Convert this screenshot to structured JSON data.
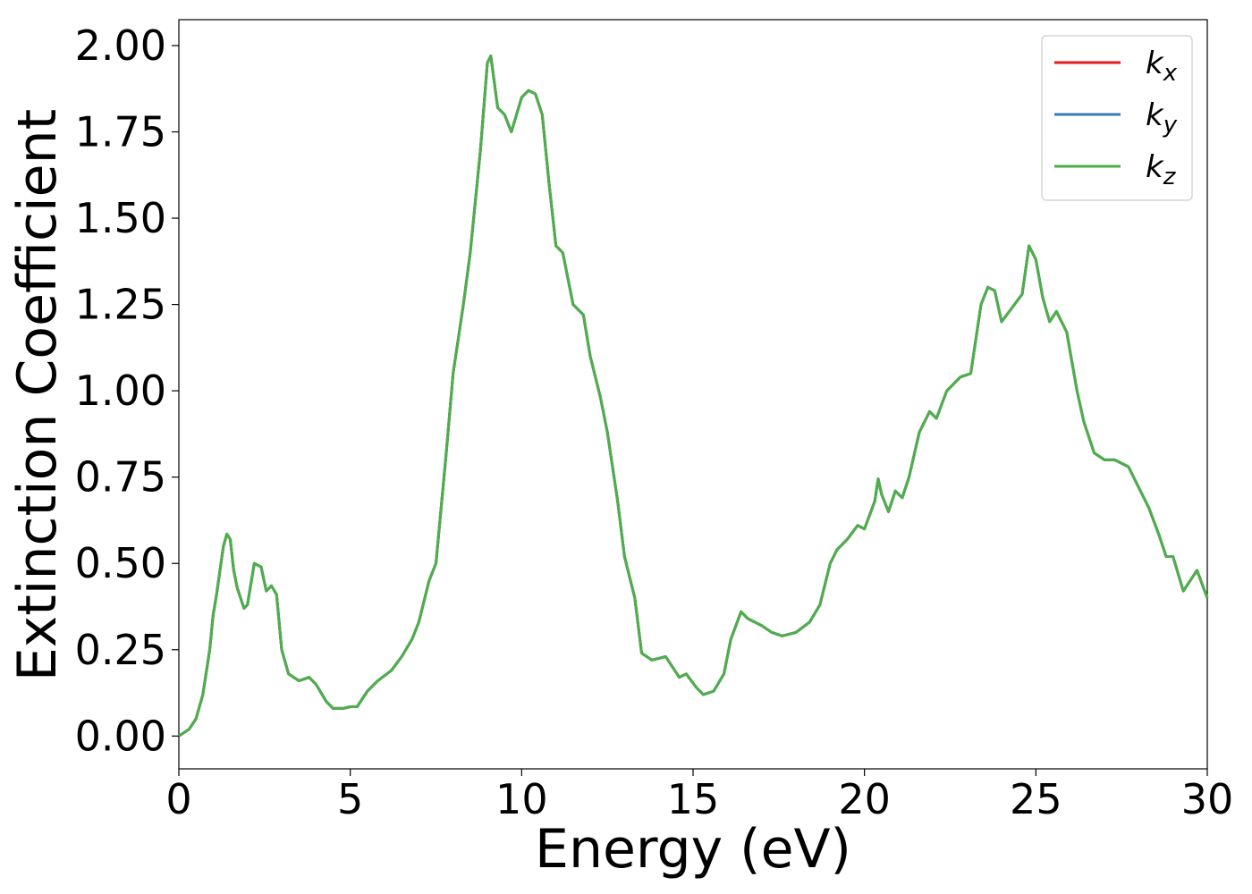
{
  "chart_data": {
    "type": "line",
    "title": "",
    "xlabel": "Energy (eV)",
    "ylabel": "Extinction Coefficient",
    "xlim": [
      0,
      30
    ],
    "ylim": [
      -0.095,
      2.075
    ],
    "x_ticks": [
      0,
      5,
      10,
      15,
      20,
      25,
      30
    ],
    "x_tick_labels": [
      "0",
      "5",
      "10",
      "15",
      "20",
      "25",
      "30"
    ],
    "y_ticks": [
      0,
      0.25,
      0.5,
      0.75,
      1.0,
      1.25,
      1.5,
      1.75,
      2.0
    ],
    "y_tick_labels": [
      "0.00",
      "0.25",
      "0.50",
      "0.75",
      "1.00",
      "1.25",
      "1.50",
      "1.75",
      "2.00"
    ],
    "grid": false,
    "legend_position": "top-right",
    "x": [
      0,
      0.3,
      0.5,
      0.7,
      0.9,
      1.0,
      1.1,
      1.3,
      1.4,
      1.5,
      1.6,
      1.7,
      1.9,
      2.0,
      2.2,
      2.4,
      2.55,
      2.7,
      2.85,
      3.0,
      3.2,
      3.5,
      3.8,
      4.0,
      4.3,
      4.5,
      4.8,
      5.0,
      5.2,
      5.5,
      5.8,
      6.2,
      6.5,
      6.8,
      7.0,
      7.3,
      7.5,
      7.8,
      8.0,
      8.3,
      8.5,
      8.8,
      9.0,
      9.1,
      9.3,
      9.5,
      9.7,
      10.0,
      10.2,
      10.4,
      10.6,
      10.8,
      11.0,
      11.2,
      11.5,
      11.8,
      12.0,
      12.3,
      12.5,
      12.8,
      13.0,
      13.3,
      13.5,
      13.8,
      14.2,
      14.6,
      14.8,
      15.1,
      15.3,
      15.6,
      15.9,
      16.1,
      16.4,
      16.6,
      16.8,
      17.0,
      17.3,
      17.6,
      18.0,
      18.4,
      18.7,
      19.0,
      19.2,
      19.5,
      19.8,
      20.0,
      20.3,
      20.4,
      20.5,
      20.7,
      20.9,
      21.1,
      21.3,
      21.6,
      21.9,
      22.1,
      22.4,
      22.6,
      22.8,
      23.1,
      23.4,
      23.6,
      23.8,
      24.0,
      24.3,
      24.6,
      24.8,
      25.0,
      25.2,
      25.4,
      25.6,
      25.9,
      26.2,
      26.4,
      26.7,
      27.0,
      27.3,
      27.7,
      28.0,
      28.3,
      28.6,
      28.8,
      29.0,
      29.3,
      29.5,
      29.7,
      30.0
    ],
    "series": [
      {
        "name": "k_x",
        "label_main": "k",
        "label_sub": "x",
        "color": "#e41a1c",
        "y": [
          0.0,
          0.02,
          0.05,
          0.12,
          0.25,
          0.35,
          0.41,
          0.55,
          0.585,
          0.57,
          0.48,
          0.43,
          0.37,
          0.38,
          0.5,
          0.49,
          0.42,
          0.435,
          0.41,
          0.25,
          0.18,
          0.16,
          0.17,
          0.15,
          0.1,
          0.08,
          0.08,
          0.085,
          0.085,
          0.13,
          0.16,
          0.19,
          0.23,
          0.28,
          0.33,
          0.45,
          0.5,
          0.82,
          1.05,
          1.25,
          1.4,
          1.7,
          1.95,
          1.97,
          1.82,
          1.8,
          1.75,
          1.85,
          1.87,
          1.86,
          1.8,
          1.6,
          1.42,
          1.4,
          1.25,
          1.22,
          1.1,
          0.98,
          0.88,
          0.68,
          0.52,
          0.4,
          0.24,
          0.22,
          0.23,
          0.17,
          0.18,
          0.14,
          0.12,
          0.13,
          0.18,
          0.28,
          0.36,
          0.34,
          0.33,
          0.32,
          0.3,
          0.29,
          0.3,
          0.33,
          0.38,
          0.5,
          0.54,
          0.57,
          0.61,
          0.6,
          0.68,
          0.745,
          0.7,
          0.65,
          0.71,
          0.69,
          0.75,
          0.88,
          0.94,
          0.92,
          1.0,
          1.02,
          1.04,
          1.05,
          1.25,
          1.3,
          1.29,
          1.2,
          1.24,
          1.28,
          1.42,
          1.38,
          1.27,
          1.2,
          1.23,
          1.17,
          1.0,
          0.91,
          0.82,
          0.8,
          0.8,
          0.78,
          0.72,
          0.66,
          0.58,
          0.52,
          0.52,
          0.42,
          0.45,
          0.48,
          0.4
        ]
      },
      {
        "name": "k_y",
        "label_main": "k",
        "label_sub": "y",
        "color": "#377eb8",
        "y": [
          0.0,
          0.02,
          0.05,
          0.12,
          0.25,
          0.35,
          0.41,
          0.55,
          0.585,
          0.57,
          0.48,
          0.43,
          0.37,
          0.38,
          0.5,
          0.49,
          0.42,
          0.435,
          0.41,
          0.25,
          0.18,
          0.16,
          0.17,
          0.15,
          0.1,
          0.08,
          0.08,
          0.085,
          0.085,
          0.13,
          0.16,
          0.19,
          0.23,
          0.28,
          0.33,
          0.45,
          0.5,
          0.82,
          1.05,
          1.25,
          1.4,
          1.7,
          1.95,
          1.97,
          1.82,
          1.8,
          1.75,
          1.85,
          1.87,
          1.86,
          1.8,
          1.6,
          1.42,
          1.4,
          1.25,
          1.22,
          1.1,
          0.98,
          0.88,
          0.68,
          0.52,
          0.4,
          0.24,
          0.22,
          0.23,
          0.17,
          0.18,
          0.14,
          0.12,
          0.13,
          0.18,
          0.28,
          0.36,
          0.34,
          0.33,
          0.32,
          0.3,
          0.29,
          0.3,
          0.33,
          0.38,
          0.5,
          0.54,
          0.57,
          0.61,
          0.6,
          0.68,
          0.745,
          0.7,
          0.65,
          0.71,
          0.69,
          0.75,
          0.88,
          0.94,
          0.92,
          1.0,
          1.02,
          1.04,
          1.05,
          1.25,
          1.3,
          1.29,
          1.2,
          1.24,
          1.28,
          1.42,
          1.38,
          1.27,
          1.2,
          1.23,
          1.17,
          1.0,
          0.91,
          0.82,
          0.8,
          0.8,
          0.78,
          0.72,
          0.66,
          0.58,
          0.52,
          0.52,
          0.42,
          0.45,
          0.48,
          0.4
        ]
      },
      {
        "name": "k_z",
        "label_main": "k",
        "label_sub": "z",
        "color": "#4daf4a",
        "y": [
          0.0,
          0.02,
          0.05,
          0.12,
          0.25,
          0.35,
          0.41,
          0.55,
          0.585,
          0.57,
          0.48,
          0.43,
          0.37,
          0.38,
          0.5,
          0.49,
          0.42,
          0.435,
          0.41,
          0.25,
          0.18,
          0.16,
          0.17,
          0.15,
          0.1,
          0.08,
          0.08,
          0.085,
          0.085,
          0.13,
          0.16,
          0.19,
          0.23,
          0.28,
          0.33,
          0.45,
          0.5,
          0.82,
          1.05,
          1.25,
          1.4,
          1.7,
          1.95,
          1.97,
          1.82,
          1.8,
          1.75,
          1.85,
          1.87,
          1.86,
          1.8,
          1.6,
          1.42,
          1.4,
          1.25,
          1.22,
          1.1,
          0.98,
          0.88,
          0.68,
          0.52,
          0.4,
          0.24,
          0.22,
          0.23,
          0.17,
          0.18,
          0.14,
          0.12,
          0.13,
          0.18,
          0.28,
          0.36,
          0.34,
          0.33,
          0.32,
          0.3,
          0.29,
          0.3,
          0.33,
          0.38,
          0.5,
          0.54,
          0.57,
          0.61,
          0.6,
          0.68,
          0.745,
          0.7,
          0.65,
          0.71,
          0.69,
          0.75,
          0.88,
          0.94,
          0.92,
          1.0,
          1.02,
          1.04,
          1.05,
          1.25,
          1.3,
          1.29,
          1.2,
          1.24,
          1.28,
          1.42,
          1.38,
          1.27,
          1.2,
          1.23,
          1.17,
          1.0,
          0.91,
          0.82,
          0.8,
          0.8,
          0.78,
          0.72,
          0.66,
          0.58,
          0.52,
          0.52,
          0.42,
          0.45,
          0.48,
          0.4
        ]
      }
    ]
  }
}
